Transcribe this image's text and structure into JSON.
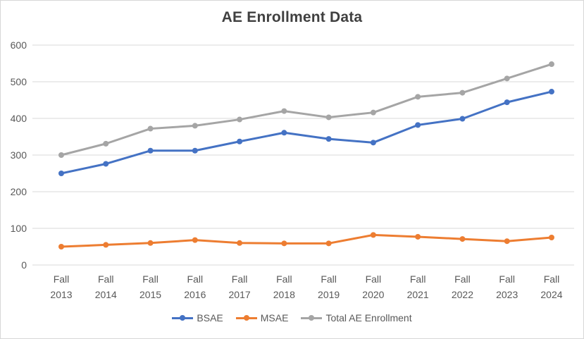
{
  "chart_data": {
    "type": "line",
    "title": "AE Enrollment Data",
    "categories": [
      "Fall 2013",
      "Fall 2014",
      "Fall 2015",
      "Fall 2016",
      "Fall 2017",
      "Fall 2018",
      "Fall 2019",
      "Fall 2020",
      "Fall 2021",
      "Fall 2022",
      "Fall 2023",
      "Fall 2024"
    ],
    "series": [
      {
        "name": "BSAE",
        "color": "#4472C4",
        "values": [
          250,
          276,
          312,
          312,
          337,
          361,
          344,
          334,
          382,
          399,
          444,
          473
        ]
      },
      {
        "name": "MSAE",
        "color": "#ED7D31",
        "values": [
          50,
          55,
          60,
          68,
          60,
          59,
          59,
          82,
          77,
          71,
          65,
          75
        ]
      },
      {
        "name": "Total AE Enrollment",
        "color": "#A5A5A5",
        "values": [
          300,
          331,
          372,
          380,
          397,
          420,
          403,
          416,
          459,
          470,
          509,
          548
        ]
      }
    ],
    "xlabel": "",
    "ylabel": "",
    "ylim": [
      0,
      600
    ],
    "yticks": [
      0,
      100,
      200,
      300,
      400,
      500,
      600
    ],
    "grid": true,
    "gridline_color": "#D9D9D9",
    "tick_label_color": "#595959",
    "title_color": "#404040",
    "legend_position": "bottom",
    "marker": "circle"
  }
}
